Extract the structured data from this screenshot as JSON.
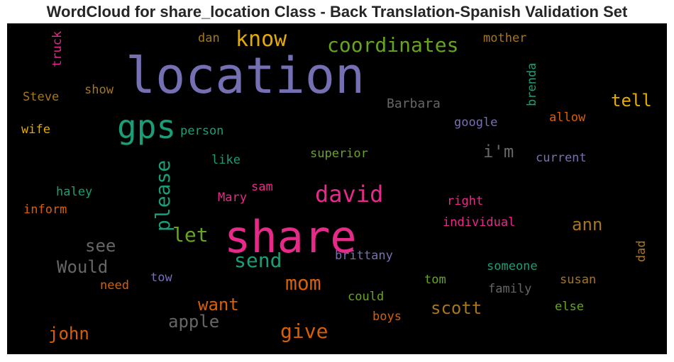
{
  "chart_data": {
    "type": "wordcloud",
    "title": "WordCloud for share_location Class - Back Translation-Spanish Validation Set",
    "background": "#000000",
    "words": [
      {
        "text": "location",
        "color": "#7570b3"
      },
      {
        "text": "share",
        "color": "#e7298a"
      },
      {
        "text": "gps",
        "color": "#1b9e77"
      },
      {
        "text": "know",
        "color": "#e6ab02"
      },
      {
        "text": "coordinates",
        "color": "#66a61e"
      },
      {
        "text": "david",
        "color": "#e7298a"
      },
      {
        "text": "please",
        "color": "#1b9e77"
      },
      {
        "text": "let",
        "color": "#66a61e"
      },
      {
        "text": "send",
        "color": "#1b9e77"
      },
      {
        "text": "mom",
        "color": "#d95f02"
      },
      {
        "text": "give",
        "color": "#d95f02"
      },
      {
        "text": "Would",
        "color": "#666666"
      },
      {
        "text": "see",
        "color": "#666666"
      },
      {
        "text": "want",
        "color": "#d95f02"
      },
      {
        "text": "apple",
        "color": "#666666"
      },
      {
        "text": "john",
        "color": "#d95f02"
      },
      {
        "text": "scott",
        "color": "#a6761d"
      },
      {
        "text": "ann",
        "color": "#a6761d"
      },
      {
        "text": "tell",
        "color": "#e6ab02"
      },
      {
        "text": "i'm",
        "color": "#666666"
      },
      {
        "text": "Barbara",
        "color": "#666666"
      },
      {
        "text": "google",
        "color": "#7570b3"
      },
      {
        "text": "allow",
        "color": "#d95f02"
      },
      {
        "text": "current",
        "color": "#7570b3"
      },
      {
        "text": "brenda",
        "color": "#1b9e77"
      },
      {
        "text": "mother",
        "color": "#a6761d"
      },
      {
        "text": "dan",
        "color": "#a6761d"
      },
      {
        "text": "truck",
        "color": "#e7298a"
      },
      {
        "text": "Steve",
        "color": "#a6761d"
      },
      {
        "text": "show",
        "color": "#a6761d"
      },
      {
        "text": "wife",
        "color": "#e6ab02"
      },
      {
        "text": "person",
        "color": "#1b9e77"
      },
      {
        "text": "superior",
        "color": "#66a61e"
      },
      {
        "text": "like",
        "color": "#1b9e77"
      },
      {
        "text": "haley",
        "color": "#1b9e77"
      },
      {
        "text": "inform",
        "color": "#d95f02"
      },
      {
        "text": "sam",
        "color": "#e7298a"
      },
      {
        "text": "Mary",
        "color": "#e7298a"
      },
      {
        "text": "right",
        "color": "#e7298a"
      },
      {
        "text": "individual",
        "color": "#e7298a"
      },
      {
        "text": "brittany",
        "color": "#7570b3"
      },
      {
        "text": "someone",
        "color": "#1b9e77"
      },
      {
        "text": "tom",
        "color": "#66a61e"
      },
      {
        "text": "family",
        "color": "#666666"
      },
      {
        "text": "susan",
        "color": "#a6761d"
      },
      {
        "text": "dad",
        "color": "#a6761d"
      },
      {
        "text": "could",
        "color": "#66a61e"
      },
      {
        "text": "else",
        "color": "#66a61e"
      },
      {
        "text": "boys",
        "color": "#d95f02"
      },
      {
        "text": "need",
        "color": "#d95f02"
      },
      {
        "text": "tow",
        "color": "#7570b3"
      }
    ]
  }
}
